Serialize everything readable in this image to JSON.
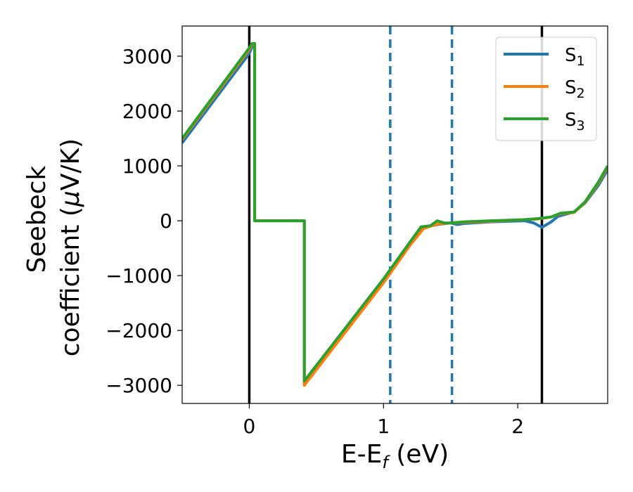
{
  "chart_data": {
    "type": "line",
    "xlabel": "E-E",
    "xlabel_sub": "f",
    "xlabel_unit": " (eV)",
    "ylabel_line1": "Seebeck",
    "ylabel_line2": "coefficient  (",
    "ylabel_mu": "μ",
    "ylabel_unit": "V/K)",
    "xlim": [
      -0.5,
      2.67
    ],
    "ylim": [
      -3330,
      3550
    ],
    "xticks": [
      0,
      1,
      2
    ],
    "xtick_labels": [
      "0",
      "1",
      "2"
    ],
    "yticks": [
      3000,
      2000,
      1000,
      0,
      -1000,
      -2000,
      -3000
    ],
    "ytick_labels": [
      "3000",
      "2000",
      "1000",
      "0",
      "−1000",
      "−2000",
      "−3000"
    ],
    "grid": false,
    "legend_position": "top-right",
    "vertical_lines": [
      {
        "x": 0.0,
        "style": "solid",
        "color": "#000000"
      },
      {
        "x": 2.18,
        "style": "solid",
        "color": "#000000"
      },
      {
        "x": 1.05,
        "style": "dashed",
        "color": "#1f77b4"
      },
      {
        "x": 1.51,
        "style": "dashed",
        "color": "#1f77b4"
      }
    ],
    "series": [
      {
        "name": "S",
        "sub": "1",
        "color": "#1f77b4",
        "points": [
          [
            -0.5,
            1420
          ],
          [
            0.0,
            3050
          ],
          [
            0.02,
            3170
          ],
          [
            0.04,
            3170
          ],
          [
            0.04,
            0
          ],
          [
            0.41,
            0
          ],
          [
            0.41,
            -2960
          ],
          [
            1.0,
            -1080
          ],
          [
            1.2,
            -400
          ],
          [
            1.3,
            -120
          ],
          [
            1.4,
            -70
          ],
          [
            1.5,
            -40
          ],
          [
            1.55,
            -70
          ],
          [
            1.6,
            -50
          ],
          [
            1.8,
            -20
          ],
          [
            2.05,
            0
          ],
          [
            2.12,
            -40
          ],
          [
            2.18,
            -120
          ],
          [
            2.25,
            -20
          ],
          [
            2.3,
            80
          ],
          [
            2.42,
            160
          ],
          [
            2.5,
            320
          ],
          [
            2.6,
            640
          ],
          [
            2.67,
            930
          ]
        ]
      },
      {
        "name": "S",
        "sub": "2",
        "color": "#ff7f0e",
        "points": [
          [
            -0.5,
            1480
          ],
          [
            0.0,
            3120
          ],
          [
            0.02,
            3210
          ],
          [
            0.04,
            3230
          ],
          [
            0.04,
            0
          ],
          [
            0.41,
            0
          ],
          [
            0.41,
            -3000
          ],
          [
            1.0,
            -1130
          ],
          [
            1.2,
            -440
          ],
          [
            1.3,
            -140
          ],
          [
            1.4,
            -60
          ],
          [
            1.5,
            -40
          ],
          [
            1.6,
            -30
          ],
          [
            1.8,
            -10
          ],
          [
            2.05,
            20
          ],
          [
            2.15,
            30
          ],
          [
            2.25,
            70
          ],
          [
            2.32,
            130
          ],
          [
            2.42,
            150
          ],
          [
            2.5,
            330
          ],
          [
            2.6,
            680
          ],
          [
            2.67,
            980
          ]
        ]
      },
      {
        "name": "S",
        "sub": "3",
        "color": "#2ca02c",
        "points": [
          [
            -0.5,
            1500
          ],
          [
            0.0,
            3150
          ],
          [
            0.02,
            3230
          ],
          [
            0.04,
            3230
          ],
          [
            0.04,
            0
          ],
          [
            0.41,
            0
          ],
          [
            0.41,
            -2920
          ],
          [
            1.0,
            -1060
          ],
          [
            1.2,
            -380
          ],
          [
            1.28,
            -110
          ],
          [
            1.35,
            -90
          ],
          [
            1.4,
            0
          ],
          [
            1.45,
            -40
          ],
          [
            1.5,
            -40
          ],
          [
            1.6,
            -20
          ],
          [
            1.8,
            0
          ],
          [
            2.05,
            20
          ],
          [
            2.15,
            40
          ],
          [
            2.25,
            70
          ],
          [
            2.32,
            140
          ],
          [
            2.42,
            160
          ],
          [
            2.5,
            340
          ],
          [
            2.6,
            700
          ],
          [
            2.67,
            1000
          ]
        ]
      }
    ]
  }
}
